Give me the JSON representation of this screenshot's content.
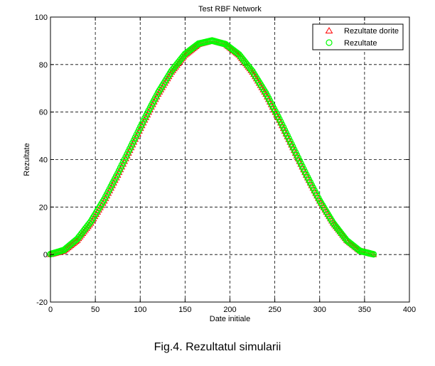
{
  "caption": "Fig.4. Rezultatul simularii",
  "chart_data": {
    "type": "scatter",
    "title": "Test RBF Network",
    "xlabel": "Date initiale",
    "ylabel": "Rezultate",
    "xlim": [
      0,
      400
    ],
    "ylim": [
      -20,
      100
    ],
    "xticks": [
      0,
      50,
      100,
      150,
      200,
      250,
      300,
      350,
      400
    ],
    "yticks": [
      -20,
      0,
      20,
      40,
      60,
      80,
      100
    ],
    "xtick_labels": [
      "0",
      "50",
      "100",
      "150",
      "200",
      "250",
      "300",
      "350",
      "400"
    ],
    "ytick_labels": [
      "-20",
      "0",
      "20",
      "40",
      "60",
      "80",
      "100"
    ],
    "grid": true,
    "legend_position": "top-right",
    "series": [
      {
        "name": "Rezultate dorite",
        "marker": "triangle",
        "color": "#ff0000",
        "x": [
          0,
          15,
          30,
          45,
          60,
          75,
          90,
          105,
          120,
          135,
          150,
          165,
          180,
          195,
          210,
          225,
          240,
          255,
          270,
          285,
          300,
          315,
          330,
          345,
          360
        ],
        "y": [
          0,
          1.5,
          6,
          13.2,
          22.5,
          33.4,
          45,
          56.6,
          67.5,
          76.8,
          84,
          88.5,
          90,
          88.5,
          84,
          76.8,
          67.5,
          56.6,
          45,
          33.4,
          22.5,
          13.2,
          6,
          1.5,
          0
        ]
      },
      {
        "name": "Rezultate",
        "marker": "circle",
        "color": "#00ff00",
        "x": [
          0,
          15,
          30,
          45,
          60,
          75,
          90,
          105,
          120,
          135,
          150,
          165,
          180,
          195,
          210,
          225,
          240,
          255,
          270,
          285,
          300,
          315,
          330,
          345,
          360
        ],
        "y": [
          0.2,
          1.9,
          6.6,
          13.9,
          23.3,
          34.2,
          45.8,
          57.4,
          68.2,
          77.4,
          84.5,
          88.8,
          90.1,
          88.6,
          84.3,
          77.2,
          68,
          57.1,
          45.4,
          33.7,
          22.7,
          13.3,
          6,
          1.5,
          0.1
        ]
      }
    ]
  }
}
